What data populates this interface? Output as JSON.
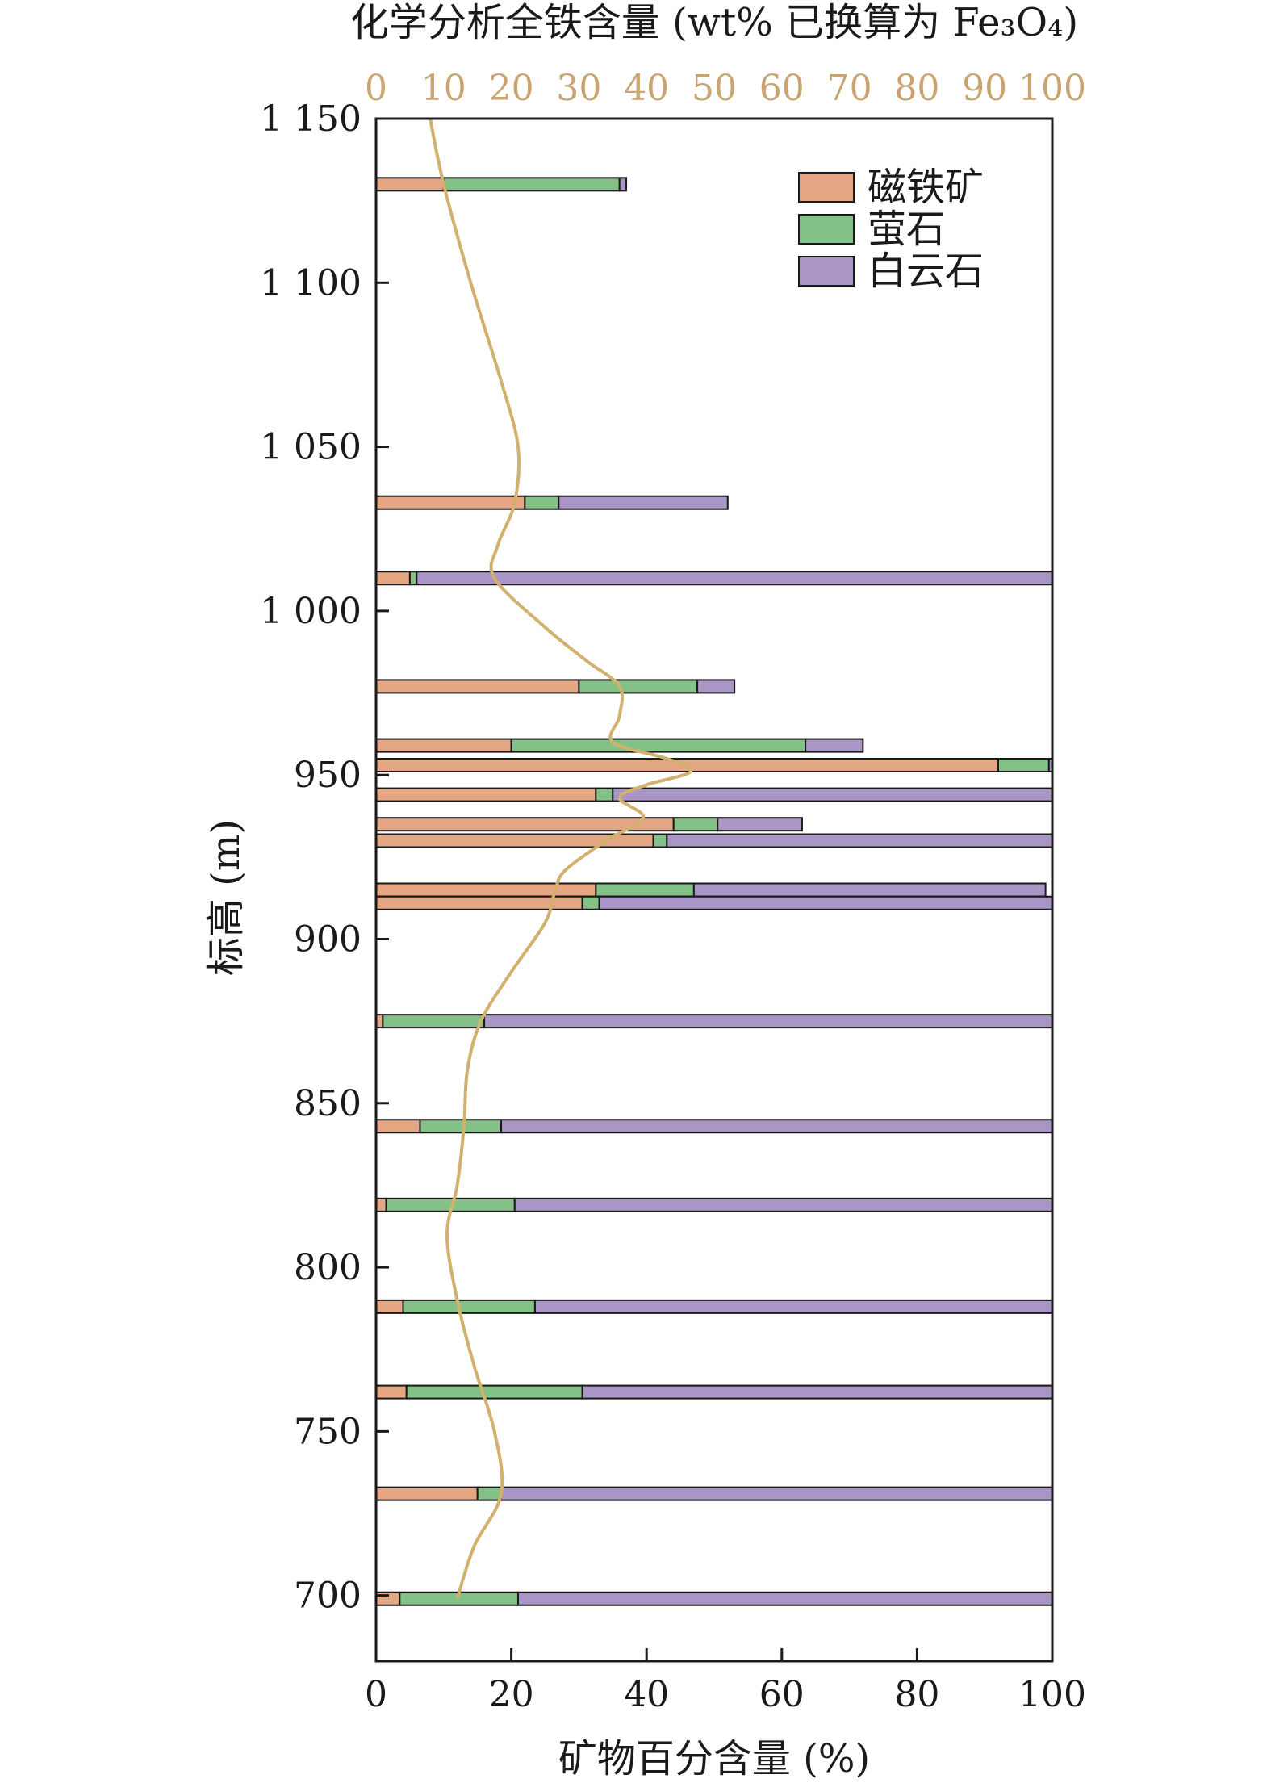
{
  "colors": {
    "magnetite": "#e4a683",
    "fluorite": "#84c186",
    "dolomite": "#a995c6",
    "iron_curve": "#d2b06e",
    "top_axis_text": "#c9a472",
    "axis": "#1a1a1a"
  },
  "chart_data": {
    "type": "bar",
    "orientation": "horizontal",
    "stacked": true,
    "xlabel": "矿物百分含量 (%)",
    "ylabel": "标高 (m)",
    "x2label": "化学分析全铁含量 (wt% 已换算为 Fe₃O₄)",
    "xlim": [
      0,
      100
    ],
    "x2lim": [
      0,
      100
    ],
    "ylim": [
      680,
      1150
    ],
    "xticks": [
      "0",
      "20",
      "40",
      "60",
      "80",
      "100"
    ],
    "x2ticks": [
      "0",
      "10",
      "20",
      "30",
      "40",
      "50",
      "60",
      "70",
      "80",
      "90",
      "100"
    ],
    "yticks": [
      {
        "value": 1150,
        "label": "1 150"
      },
      {
        "value": 1100,
        "label": "1 100"
      },
      {
        "value": 1050,
        "label": "1 050"
      },
      {
        "value": 1000,
        "label": "1 000"
      },
      {
        "value": 950,
        "label": "950"
      },
      {
        "value": 900,
        "label": "900"
      },
      {
        "value": 850,
        "label": "850"
      },
      {
        "value": 800,
        "label": "800"
      },
      {
        "value": 750,
        "label": "750"
      },
      {
        "value": 700,
        "label": "700"
      }
    ],
    "series": [
      {
        "name": "磁铁矿",
        "key": "magnetite"
      },
      {
        "name": "萤石",
        "key": "fluorite"
      },
      {
        "name": "白云石",
        "key": "dolomite"
      }
    ],
    "legend": {
      "placement": "top-right"
    },
    "samples": [
      {
        "elevation": 1130,
        "magnetite": 10,
        "fluorite": 26,
        "dolomite": 1
      },
      {
        "elevation": 1033,
        "magnetite": 22,
        "fluorite": 5,
        "dolomite": 25
      },
      {
        "elevation": 1010,
        "magnetite": 5,
        "fluorite": 1,
        "dolomite": 94
      },
      {
        "elevation": 977,
        "magnetite": 30,
        "fluorite": 17.5,
        "dolomite": 5.5
      },
      {
        "elevation": 959,
        "magnetite": 20,
        "fluorite": 43.5,
        "dolomite": 8.5
      },
      {
        "elevation": 953,
        "magnetite": 92,
        "fluorite": 7.5,
        "dolomite": 0.5
      },
      {
        "elevation": 944,
        "magnetite": 32.5,
        "fluorite": 2.5,
        "dolomite": 65
      },
      {
        "elevation": 935,
        "magnetite": 44,
        "fluorite": 6.5,
        "dolomite": 12.5
      },
      {
        "elevation": 930,
        "magnetite": 41,
        "fluorite": 2,
        "dolomite": 57
      },
      {
        "elevation": 915,
        "magnetite": 32.5,
        "fluorite": 14.5,
        "dolomite": 52
      },
      {
        "elevation": 911,
        "magnetite": 30.5,
        "fluorite": 2.5,
        "dolomite": 67
      },
      {
        "elevation": 875,
        "magnetite": 1,
        "fluorite": 15,
        "dolomite": 84
      },
      {
        "elevation": 843,
        "magnetite": 6.5,
        "fluorite": 12,
        "dolomite": 81.5
      },
      {
        "elevation": 819,
        "magnetite": 1.5,
        "fluorite": 19,
        "dolomite": 79.5
      },
      {
        "elevation": 788,
        "magnetite": 4,
        "fluorite": 19.5,
        "dolomite": 76.5
      },
      {
        "elevation": 762,
        "magnetite": 4.5,
        "fluorite": 26,
        "dolomite": 69.5
      },
      {
        "elevation": 731,
        "magnetite": 15,
        "fluorite": 3.5,
        "dolomite": 81.5
      },
      {
        "elevation": 699,
        "magnetite": 3.5,
        "fluorite": 17.5,
        "dolomite": 79
      }
    ],
    "iron_curve": {
      "axis": "top",
      "points": [
        {
          "elevation": 1150,
          "value": 8
        },
        {
          "elevation": 1130,
          "value": 10
        },
        {
          "elevation": 1100,
          "value": 14
        },
        {
          "elevation": 1070,
          "value": 18.5
        },
        {
          "elevation": 1050,
          "value": 21
        },
        {
          "elevation": 1033,
          "value": 20.5
        },
        {
          "elevation": 1020,
          "value": 18
        },
        {
          "elevation": 1010,
          "value": 17.5
        },
        {
          "elevation": 995,
          "value": 25
        },
        {
          "elevation": 985,
          "value": 31
        },
        {
          "elevation": 977,
          "value": 36
        },
        {
          "elevation": 968,
          "value": 36
        },
        {
          "elevation": 960,
          "value": 35
        },
        {
          "elevation": 955,
          "value": 43
        },
        {
          "elevation": 951,
          "value": 46.5
        },
        {
          "elevation": 947,
          "value": 40
        },
        {
          "elevation": 943,
          "value": 36
        },
        {
          "elevation": 937,
          "value": 39.5
        },
        {
          "elevation": 930,
          "value": 34
        },
        {
          "elevation": 921,
          "value": 28
        },
        {
          "elevation": 915,
          "value": 26.5
        },
        {
          "elevation": 905,
          "value": 25
        },
        {
          "elevation": 890,
          "value": 20
        },
        {
          "elevation": 875,
          "value": 15.5
        },
        {
          "elevation": 860,
          "value": 13.5
        },
        {
          "elevation": 843,
          "value": 13
        },
        {
          "elevation": 825,
          "value": 12
        },
        {
          "elevation": 810,
          "value": 10.5
        },
        {
          "elevation": 790,
          "value": 12
        },
        {
          "elevation": 770,
          "value": 14.5
        },
        {
          "elevation": 750,
          "value": 17.5
        },
        {
          "elevation": 731,
          "value": 18.5
        },
        {
          "elevation": 715,
          "value": 14.5
        },
        {
          "elevation": 699,
          "value": 12
        }
      ]
    }
  }
}
